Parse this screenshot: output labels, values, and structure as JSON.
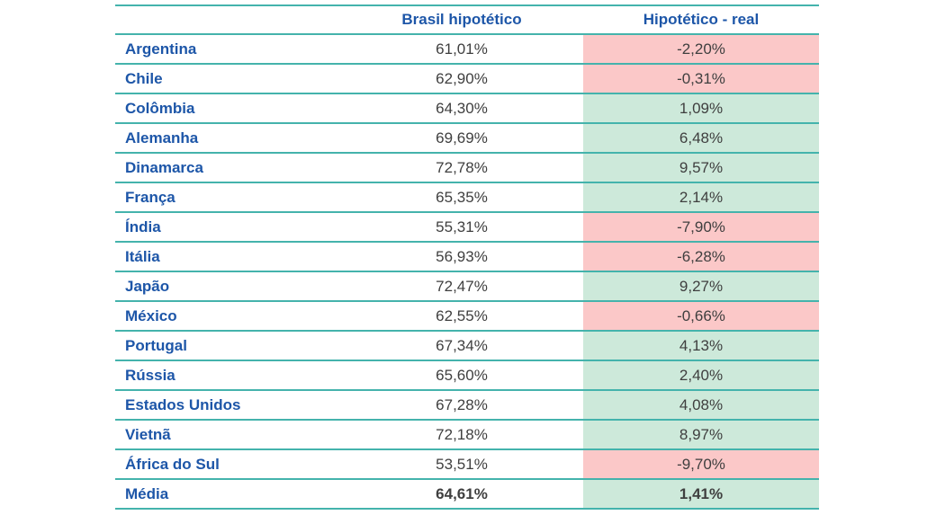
{
  "colors": {
    "border_teal": "#44b3ac",
    "header_blue": "#1d56a8",
    "value_gray": "#3f3f3f",
    "negative_bg": "#fbc8c8",
    "positive_bg": "#cde9da"
  },
  "table": {
    "headers": [
      "",
      "Brasil hipotético",
      "Hipotético - real"
    ],
    "rows": [
      {
        "country": "Argentina",
        "hipotetico": "61,01%",
        "diff": "-2,20%",
        "status": "negative",
        "bold": false
      },
      {
        "country": "Chile",
        "hipotetico": "62,90%",
        "diff": "-0,31%",
        "status": "negative",
        "bold": false
      },
      {
        "country": "Colômbia",
        "hipotetico": "64,30%",
        "diff": "1,09%",
        "status": "positive",
        "bold": false
      },
      {
        "country": "Alemanha",
        "hipotetico": "69,69%",
        "diff": "6,48%",
        "status": "positive",
        "bold": false
      },
      {
        "country": "Dinamarca",
        "hipotetico": "72,78%",
        "diff": "9,57%",
        "status": "positive",
        "bold": false
      },
      {
        "country": "França",
        "hipotetico": "65,35%",
        "diff": "2,14%",
        "status": "positive",
        "bold": false
      },
      {
        "country": "Índia",
        "hipotetico": "55,31%",
        "diff": "-7,90%",
        "status": "negative",
        "bold": false
      },
      {
        "country": "Itália",
        "hipotetico": "56,93%",
        "diff": "-6,28%",
        "status": "negative",
        "bold": false
      },
      {
        "country": "Japão",
        "hipotetico": "72,47%",
        "diff": "9,27%",
        "status": "positive",
        "bold": false
      },
      {
        "country": "México",
        "hipotetico": "62,55%",
        "diff": "-0,66%",
        "status": "negative",
        "bold": false
      },
      {
        "country": "Portugal",
        "hipotetico": "67,34%",
        "diff": "4,13%",
        "status": "positive",
        "bold": false
      },
      {
        "country": "Rússia",
        "hipotetico": "65,60%",
        "diff": "2,40%",
        "status": "positive",
        "bold": false
      },
      {
        "country": "Estados Unidos",
        "hipotetico": "67,28%",
        "diff": "4,08%",
        "status": "positive",
        "bold": false
      },
      {
        "country": "Vietnã",
        "hipotetico": "72,18%",
        "diff": "8,97%",
        "status": "positive",
        "bold": false
      },
      {
        "country": "África do Sul",
        "hipotetico": "53,51%",
        "diff": "-9,70%",
        "status": "negative",
        "bold": false
      },
      {
        "country": "Média",
        "hipotetico": "64,61%",
        "diff": "1,41%",
        "status": "positive",
        "bold": true
      }
    ]
  },
  "chart_data": {
    "type": "table",
    "title": "",
    "columns": [
      "",
      "Brasil hipotético",
      "Hipotético - real"
    ],
    "categories": [
      "Argentina",
      "Chile",
      "Colômbia",
      "Alemanha",
      "Dinamarca",
      "França",
      "Índia",
      "Itália",
      "Japão",
      "México",
      "Portugal",
      "Rússia",
      "Estados Unidos",
      "Vietnã",
      "África do Sul",
      "Média"
    ],
    "series": [
      {
        "name": "Brasil hipotético",
        "unit": "%",
        "values": [
          61.01,
          62.9,
          64.3,
          69.69,
          72.78,
          65.35,
          55.31,
          56.93,
          72.47,
          62.55,
          67.34,
          65.6,
          67.28,
          72.18,
          53.51,
          64.61
        ]
      },
      {
        "name": "Hipotético - real",
        "unit": "%",
        "values": [
          -2.2,
          -0.31,
          1.09,
          6.48,
          9.57,
          2.14,
          -7.9,
          -6.28,
          9.27,
          -0.66,
          4.13,
          2.4,
          4.08,
          8.97,
          -9.7,
          1.41
        ]
      }
    ],
    "layout_hints": {
      "conditional_fill": "second series cells: pink background when negative, green when positive",
      "last_row_is_average": true,
      "grid": "horizontal teal rules only"
    }
  }
}
